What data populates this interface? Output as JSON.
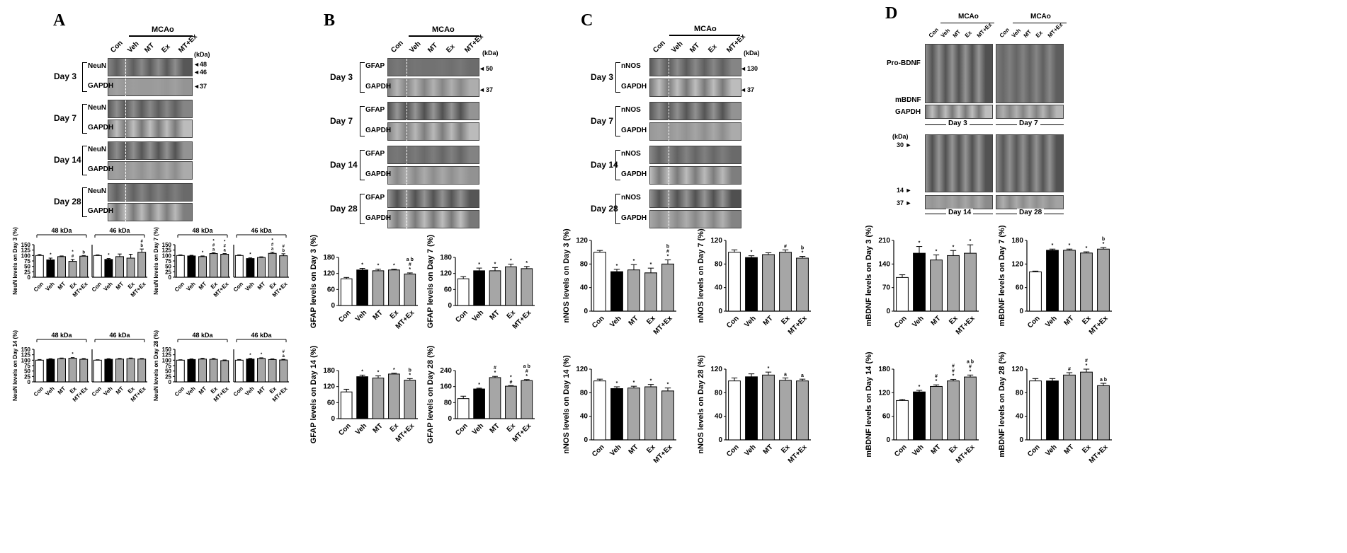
{
  "panels": {
    "A": {
      "letter": "A",
      "mcao": "MCAo",
      "kda": "(kDa)",
      "lanes": [
        "Con",
        "Veh",
        "MT",
        "Ex",
        "MT+Ex"
      ],
      "days": [
        "Day 3",
        "Day 7",
        "Day 14",
        "Day 28"
      ],
      "protein": "NeuN",
      "loading": "GAPDH",
      "markers": [
        "48",
        "46",
        "37"
      ]
    },
    "B": {
      "letter": "B",
      "mcao": "MCAo",
      "kda": "(kDa)",
      "lanes": [
        "Con",
        "Veh",
        "MT",
        "Ex",
        "MT+Ex"
      ],
      "days": [
        "Day 3",
        "Day 7",
        "Day 14",
        "Day 28"
      ],
      "protein": "GFAP",
      "loading": "GAPDH",
      "markers": [
        "50",
        "37"
      ]
    },
    "C": {
      "letter": "C",
      "mcao": "MCAo",
      "kda": "(kDa)",
      "lanes": [
        "Con",
        "Veh",
        "MT",
        "Ex",
        "MT+Ex"
      ],
      "days": [
        "Day 3",
        "Day 7",
        "Day 14",
        "Day 28"
      ],
      "protein": "nNOS",
      "loading": "GAPDH",
      "markers": [
        "130",
        "37"
      ]
    },
    "D": {
      "letter": "D",
      "mcao": "MCAo",
      "kda": "(kDa)",
      "lanes": [
        "Con",
        "Veh",
        "MT",
        "Ex",
        "MT+Ex"
      ],
      "probdnf": "Pro-BDNF",
      "mbdnf": "mBDNF",
      "loading": "GAPDH",
      "days_top": [
        "Day 3",
        "Day 7"
      ],
      "days_bottom": [
        "Day 14",
        "Day 28"
      ],
      "markers": [
        "30",
        "14",
        "37"
      ]
    }
  },
  "chart_data": [
    {
      "id": "A-d3-48",
      "type": "bar",
      "panel": "A",
      "group_label": "48 kDa",
      "ylabel": "NeuN levels on Day 3 (%)",
      "categories": [
        "Con",
        "Veh",
        "MT",
        "Ex",
        "MT+Ex"
      ],
      "values": [
        100,
        80,
        95,
        73,
        97
      ],
      "errors": [
        5,
        8,
        3,
        9,
        3
      ],
      "sig": [
        "",
        "*",
        "",
        "*\n#",
        "b"
      ],
      "ylim": [
        0,
        150
      ],
      "yticks": [
        0,
        25,
        50,
        75,
        100,
        125,
        150
      ]
    },
    {
      "id": "A-d3-46",
      "type": "bar",
      "panel": "A",
      "group_label": "46 kDa",
      "ylabel": "",
      "categories": [
        "Con",
        "Veh",
        "MT",
        "Ex",
        "MT+Ex"
      ],
      "values": [
        100,
        82,
        95,
        88,
        115
      ],
      "errors": [
        3,
        4,
        12,
        18,
        15
      ],
      "sig": [
        "",
        "*",
        "",
        "",
        "#\nb"
      ],
      "ylim": [
        0,
        150
      ],
      "yticks": []
    },
    {
      "id": "A-d7-48",
      "type": "bar",
      "panel": "A",
      "group_label": "48 kDa",
      "ylabel": "NeuN levels on Day 7 (%)",
      "categories": [
        "Con",
        "Veh",
        "MT",
        "Ex",
        "MT+Ex"
      ],
      "values": [
        100,
        98,
        95,
        109,
        106
      ],
      "errors": [
        3,
        3,
        3,
        4,
        3
      ],
      "sig": [
        "",
        "",
        "*",
        "*\n#\na",
        "*\n#\na"
      ],
      "ylim": [
        0,
        150
      ],
      "yticks": [
        0,
        25,
        50,
        75,
        100,
        125,
        150
      ]
    },
    {
      "id": "A-d7-46",
      "type": "bar",
      "panel": "A",
      "group_label": "46 kDa",
      "ylabel": "",
      "categories": [
        "Con",
        "Veh",
        "MT",
        "Ex",
        "MT+Ex"
      ],
      "values": [
        100,
        86,
        91,
        110,
        99
      ],
      "errors": [
        3,
        3,
        3,
        5,
        9
      ],
      "sig": [
        "",
        "*",
        "",
        "*\n#\na",
        "#\nb"
      ],
      "ylim": [
        0,
        150
      ],
      "yticks": []
    },
    {
      "id": "A-d14-48",
      "type": "bar",
      "panel": "A",
      "group_label": "48 kDa",
      "ylabel": "NeuN levels on Day 14 (%)",
      "categories": [
        "Con",
        "Veh",
        "MT",
        "Ex",
        "MT+Ex"
      ],
      "values": [
        100,
        104,
        107,
        109,
        104
      ],
      "errors": [
        3,
        3,
        3,
        3,
        4
      ],
      "sig": [
        "",
        "",
        "",
        "*",
        ""
      ],
      "ylim": [
        0,
        150
      ],
      "yticks": [
        0,
        25,
        50,
        75,
        100,
        125,
        150
      ]
    },
    {
      "id": "A-d14-46",
      "type": "bar",
      "panel": "A",
      "group_label": "46 kDa",
      "ylabel": "",
      "categories": [
        "Con",
        "Veh",
        "MT",
        "Ex",
        "MT+Ex"
      ],
      "values": [
        100,
        104,
        105,
        107,
        105
      ],
      "errors": [
        2,
        3,
        3,
        3,
        3
      ],
      "sig": [
        "",
        "",
        "",
        "",
        ""
      ],
      "ylim": [
        0,
        150
      ],
      "yticks": []
    },
    {
      "id": "A-d28-48",
      "type": "bar",
      "panel": "A",
      "group_label": "48 kDa",
      "ylabel": "NeuN levels on Day 28 (%)",
      "categories": [
        "Con",
        "Veh",
        "MT",
        "Ex",
        "MT+Ex"
      ],
      "values": [
        100,
        103,
        105,
        104,
        98
      ],
      "errors": [
        2,
        3,
        4,
        4,
        3
      ],
      "sig": [
        "",
        "",
        "",
        "",
        ""
      ],
      "ylim": [
        0,
        150
      ],
      "yticks": [
        0,
        25,
        50,
        75,
        100,
        125,
        150
      ]
    },
    {
      "id": "A-d28-46",
      "type": "bar",
      "panel": "A",
      "group_label": "46 kDa",
      "ylabel": "",
      "categories": [
        "Con",
        "Veh",
        "MT",
        "Ex",
        "MT+Ex"
      ],
      "values": [
        100,
        105,
        108,
        103,
        101
      ],
      "errors": [
        3,
        3,
        3,
        3,
        3
      ],
      "sig": [
        "",
        "*",
        "*",
        "",
        "#\na"
      ],
      "ylim": [
        0,
        150
      ],
      "yticks": []
    },
    {
      "id": "B-d3",
      "type": "bar",
      "panel": "B",
      "ylabel": "GFAP levels on Day 3 (%)",
      "categories": [
        "Con",
        "Veh",
        "MT",
        "Ex",
        "MT+Ex"
      ],
      "values": [
        100,
        133,
        130,
        133,
        118
      ],
      "errors": [
        5,
        6,
        6,
        3,
        4
      ],
      "sig": [
        "",
        "*",
        "*",
        "*",
        "a b\n#\n*"
      ],
      "ylim": [
        0,
        180
      ],
      "yticks": [
        0,
        60,
        120,
        180
      ]
    },
    {
      "id": "B-d7",
      "type": "bar",
      "panel": "B",
      "ylabel": "GFAP levels on Day 7 (%)",
      "categories": [
        "Con",
        "Veh",
        "MT",
        "Ex",
        "MT+Ex"
      ],
      "values": [
        100,
        130,
        130,
        145,
        138
      ],
      "errors": [
        8,
        10,
        12,
        10,
        8
      ],
      "sig": [
        "",
        "*",
        "*",
        "*",
        "*"
      ],
      "ylim": [
        0,
        180
      ],
      "yticks": [
        0,
        60,
        120,
        180
      ]
    },
    {
      "id": "B-d14",
      "type": "bar",
      "panel": "B",
      "ylabel": "GFAP levels on Day 14 (%)",
      "categories": [
        "Con",
        "Veh",
        "MT",
        "Ex",
        "MT+Ex"
      ],
      "values": [
        100,
        157,
        152,
        167,
        144
      ],
      "errors": [
        10,
        6,
        8,
        3,
        6
      ],
      "sig": [
        "",
        "*",
        "*",
        "*",
        "b\n*"
      ],
      "ylim": [
        0,
        180
      ],
      "yticks": [
        0,
        60,
        120,
        180
      ]
    },
    {
      "id": "B-d28",
      "type": "bar",
      "panel": "B",
      "ylabel": "GFAP levels on Day 28 (%)",
      "categories": [
        "Con",
        "Veh",
        "MT",
        "Ex",
        "MT+Ex"
      ],
      "values": [
        100,
        148,
        205,
        162,
        190
      ],
      "errors": [
        12,
        4,
        6,
        3,
        5
      ],
      "sig": [
        "",
        "*",
        "#\n*",
        "*\n#",
        "a b\n#\n*"
      ],
      "ylim": [
        0,
        240
      ],
      "yticks": [
        0,
        80,
        160,
        240
      ]
    },
    {
      "id": "C-d3",
      "type": "bar",
      "panel": "C",
      "ylabel": "nNOS levels on Day 3 (%)",
      "categories": [
        "Con",
        "Veh",
        "MT",
        "Ex",
        "MT+Ex"
      ],
      "values": [
        100,
        67,
        70,
        65,
        80
      ],
      "errors": [
        3,
        4,
        9,
        8,
        7
      ],
      "sig": [
        "",
        "*",
        "*",
        "*",
        "b\n#\n*"
      ],
      "ylim": [
        0,
        120
      ],
      "yticks": [
        0,
        40,
        80,
        120
      ]
    },
    {
      "id": "C-d7",
      "type": "bar",
      "panel": "C",
      "ylabel": "nNOS levels on Day 7 (%)",
      "categories": [
        "Con",
        "Veh",
        "MT",
        "Ex",
        "MT+Ex"
      ],
      "values": [
        100,
        91,
        96,
        100,
        90
      ],
      "errors": [
        4,
        3,
        3,
        4,
        3
      ],
      "sig": [
        "",
        "*",
        "",
        "#",
        "b\n*"
      ],
      "ylim": [
        0,
        120
      ],
      "yticks": [
        0,
        40,
        80,
        120
      ]
    },
    {
      "id": "C-d14",
      "type": "bar",
      "panel": "C",
      "ylabel": "nNOS levels on Day 14 (%)",
      "categories": [
        "Con",
        "Veh",
        "MT",
        "Ex",
        "MT+Ex"
      ],
      "values": [
        100,
        87,
        88,
        90,
        83
      ],
      "errors": [
        3,
        3,
        3,
        4,
        5
      ],
      "sig": [
        "",
        "*",
        "*",
        "*",
        "*"
      ],
      "ylim": [
        0,
        120
      ],
      "yticks": [
        0,
        40,
        80,
        120
      ]
    },
    {
      "id": "C-d28",
      "type": "bar",
      "panel": "C",
      "ylabel": "nNOS levels on Day 28 (%)",
      "categories": [
        "Con",
        "Veh",
        "MT",
        "Ex",
        "MT+Ex"
      ],
      "values": [
        100,
        107,
        110,
        101,
        100
      ],
      "errors": [
        5,
        5,
        5,
        4,
        3
      ],
      "sig": [
        "",
        "",
        "*",
        "a",
        "a"
      ],
      "ylim": [
        0,
        120
      ],
      "yticks": [
        0,
        40,
        80,
        120
      ]
    },
    {
      "id": "D-d3",
      "type": "bar",
      "panel": "D",
      "ylabel": "mBDNF levels on Day 3 (%)",
      "categories": [
        "Con",
        "Veh",
        "MT",
        "Ex",
        "MT+Ex"
      ],
      "values": [
        100,
        172,
        152,
        165,
        172
      ],
      "errors": [
        8,
        20,
        15,
        15,
        25
      ],
      "sig": [
        "",
        "*",
        "*",
        "*",
        "*"
      ],
      "ylim": [
        0,
        210
      ],
      "yticks": [
        0,
        70,
        140,
        210
      ]
    },
    {
      "id": "D-d7",
      "type": "bar",
      "panel": "D",
      "ylabel": "mBDNF levels on Day 7 (%)",
      "categories": [
        "Con",
        "Veh",
        "MT",
        "Ex",
        "MT+Ex"
      ],
      "values": [
        100,
        155,
        155,
        148,
        158
      ],
      "errors": [
        2,
        3,
        3,
        3,
        4
      ],
      "sig": [
        "",
        "*",
        "*",
        "*",
        "b\n*"
      ],
      "ylim": [
        0,
        180
      ],
      "yticks": [
        0,
        60,
        120,
        180
      ]
    },
    {
      "id": "D-d14",
      "type": "bar",
      "panel": "D",
      "ylabel": "mBDNF levels on Day 14 (%)",
      "categories": [
        "Con",
        "Veh",
        "MT",
        "Ex",
        "MT+Ex"
      ],
      "values": [
        100,
        122,
        136,
        150,
        160
      ],
      "errors": [
        3,
        4,
        4,
        4,
        5
      ],
      "sig": [
        "",
        "*",
        "#\n*",
        "#\n#\n*",
        "a b\n#\n*"
      ],
      "ylim": [
        0,
        180
      ],
      "yticks": [
        0,
        60,
        120,
        180
      ]
    },
    {
      "id": "D-d28",
      "type": "bar",
      "panel": "D",
      "ylabel": "mBDNF levels on Day 28 (%)",
      "categories": [
        "Con",
        "Veh",
        "MT",
        "Ex",
        "MT+Ex"
      ],
      "values": [
        100,
        100,
        110,
        115,
        92
      ],
      "errors": [
        4,
        4,
        4,
        5,
        4
      ],
      "sig": [
        "",
        "",
        "#",
        "#\n*",
        "a b"
      ],
      "ylim": [
        0,
        120
      ],
      "yticks": [
        0,
        40,
        80,
        120
      ]
    }
  ]
}
